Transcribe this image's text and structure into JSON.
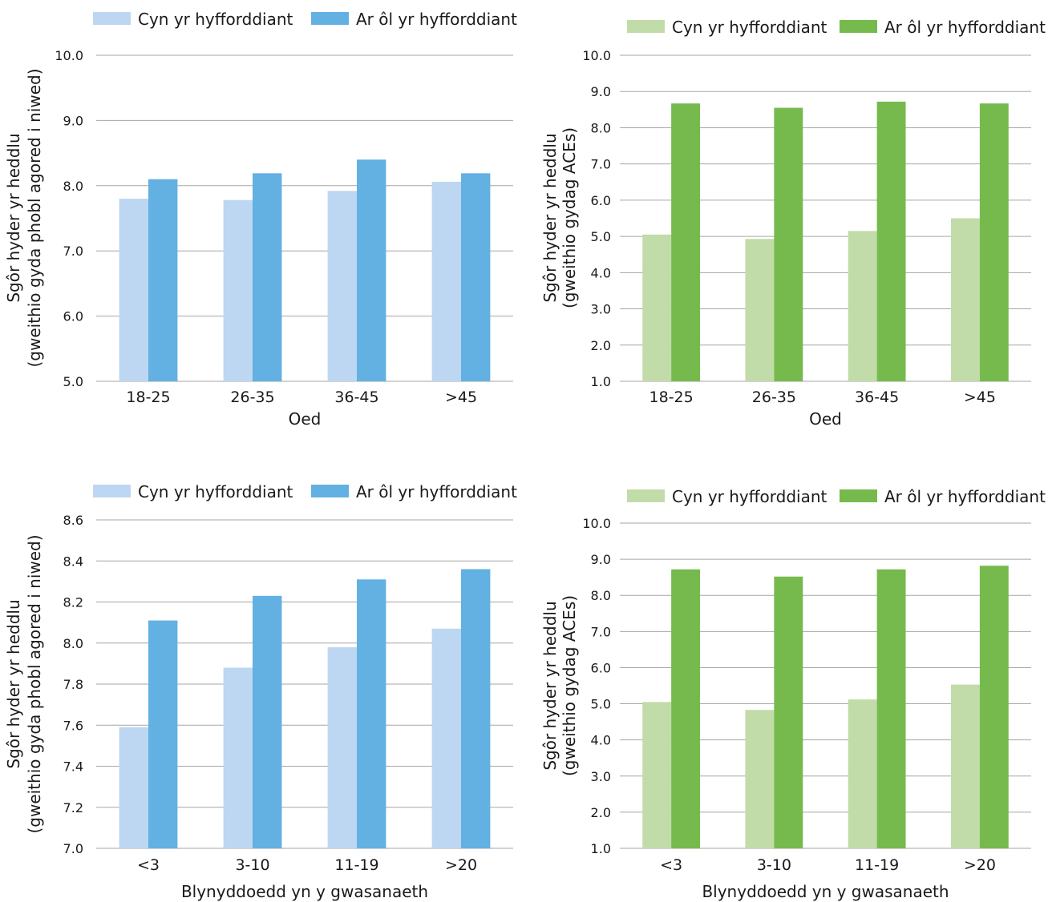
{
  "colors": {
    "blue_before": "#bdd7f2",
    "blue_after": "#63b0e2",
    "green_before": "#c1dca8",
    "green_after": "#76ba4d",
    "grid": "#a6a6a6"
  },
  "chart_data": [
    {
      "type": "bar",
      "categories": [
        "18-25",
        "26-35",
        "36-45",
        ">45"
      ],
      "series": [
        {
          "name": "Cyn yr hyfforddiant",
          "values": [
            7.8,
            7.78,
            7.92,
            8.06
          ]
        },
        {
          "name": "Ar ôl yr hyfforddiant",
          "values": [
            8.1,
            8.19,
            8.4,
            8.19
          ]
        }
      ],
      "ylim": [
        5.0,
        10.0
      ],
      "yticks": [
        "5.0",
        "6.0",
        "7.0",
        "8.0",
        "9.0",
        "10.0"
      ],
      "xlabel": "Oed",
      "ylabel": [
        "Sgôr hyder yr heddlu",
        "(gweithio gyda phobl agored i niwed)"
      ],
      "legend": "top",
      "grid": true,
      "palette": "blue"
    },
    {
      "type": "bar",
      "categories": [
        "18-25",
        "26-35",
        "36-45",
        ">45"
      ],
      "series": [
        {
          "name": "Cyn yr hyfforddiant",
          "values": [
            5.05,
            4.93,
            5.15,
            5.5
          ]
        },
        {
          "name": "Ar ôl yr hyfforddiant",
          "values": [
            8.67,
            8.55,
            8.72,
            8.67
          ]
        }
      ],
      "ylim": [
        1.0,
        10.0
      ],
      "yticks": [
        "1.0",
        "2.0",
        "3.0",
        "4.0",
        "5.0",
        "6.0",
        "7.0",
        "8.0",
        "9.0",
        "10.0"
      ],
      "xlabel": "Oed",
      "ylabel": [
        "Sgôr hyder yr heddlu",
        "(gweithio gydag ACEs)"
      ],
      "legend": "top",
      "grid": true,
      "palette": "green"
    },
    {
      "type": "bar",
      "categories": [
        "<3",
        "3-10",
        "11-19",
        ">20"
      ],
      "series": [
        {
          "name": "Cyn yr hyfforddiant",
          "values": [
            7.59,
            7.88,
            7.98,
            8.07
          ]
        },
        {
          "name": "Ar ôl yr hyfforddiant",
          "values": [
            8.11,
            8.23,
            8.31,
            8.36
          ]
        }
      ],
      "ylim": [
        7.0,
        8.6
      ],
      "yticks": [
        "7.0",
        "7.2",
        "7.4",
        "7.6",
        "7.8",
        "8.0",
        "8.2",
        "8.4",
        "8.6"
      ],
      "xlabel": "Blynyddoedd yn y gwasanaeth",
      "ylabel": [
        "Sgôr hyder yr heddlu",
        "(gweithio gyda phobl agored i niwed)"
      ],
      "legend": "top",
      "grid": true,
      "palette": "blue"
    },
    {
      "type": "bar",
      "categories": [
        "<3",
        "3-10",
        "11-19",
        ">20"
      ],
      "series": [
        {
          "name": "Cyn yr hyfforddiant",
          "values": [
            5.05,
            4.83,
            5.12,
            5.53
          ]
        },
        {
          "name": "Ar ôl yr hyfforddiant",
          "values": [
            8.72,
            8.52,
            8.72,
            8.82
          ]
        }
      ],
      "ylim": [
        1.0,
        10.0
      ],
      "yticks": [
        "1.0",
        "2.0",
        "3.0",
        "4.0",
        "5.0",
        "6.0",
        "7.0",
        "8.0",
        "9.0",
        "10.0"
      ],
      "xlabel": "Blynyddoedd yn y gwasanaeth",
      "ylabel": [
        "Sgôr hyder yr heddlu",
        "(gweithio gydag ACEs)"
      ],
      "legend": "top",
      "grid": true,
      "palette": "green"
    }
  ]
}
